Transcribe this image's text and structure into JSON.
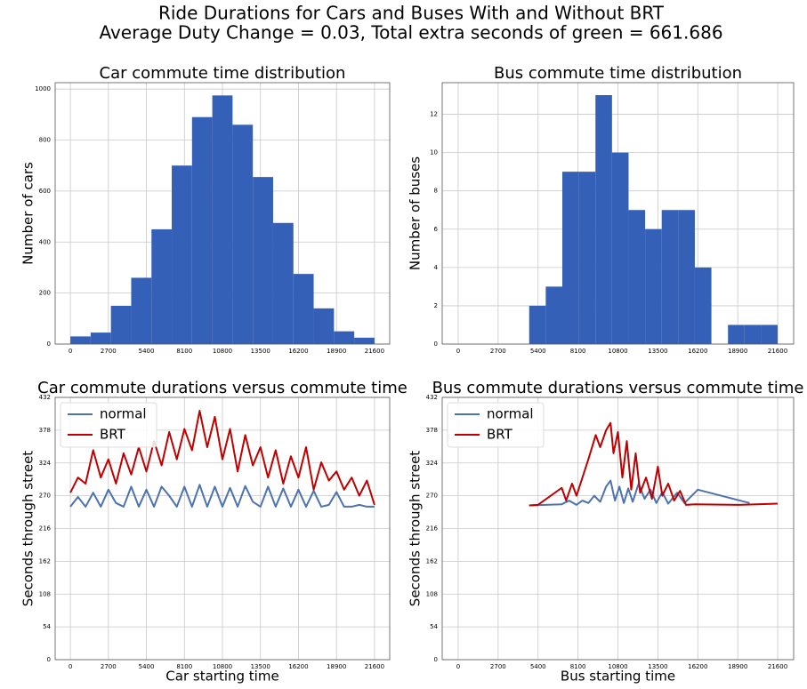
{
  "title": [
    "Ride Durations for Cars and Buses With and Without BRT",
    "Average Duty Change = 0.03, Total extra seconds of green = 661.686"
  ],
  "chart_data": [
    {
      "type": "histogram",
      "title": "Car commute time distribution",
      "y_label": "Number of cars",
      "color": "#3560b8",
      "bins": [
        0,
        1440,
        2880,
        4320,
        5760,
        7200,
        8640,
        10080,
        11520,
        12960,
        14400,
        15840,
        17280,
        18720,
        20160,
        21600
      ],
      "values": [
        30,
        45,
        150,
        260,
        450,
        700,
        890,
        975,
        860,
        655,
        475,
        275,
        140,
        50,
        25
      ],
      "xlim": [
        -1080,
        22680
      ],
      "ylim": [
        0,
        1025
      ],
      "xticks": [
        0,
        2700,
        5400,
        8100,
        10800,
        13500,
        16200,
        18900,
        21600
      ],
      "yticks": [
        0,
        200,
        400,
        600,
        800,
        1000
      ],
      "grid": true
    },
    {
      "type": "histogram",
      "title": "Bus commute time distribution",
      "y_label": "Number of buses",
      "color": "#3560b8",
      "bins": [
        4800,
        5920,
        7040,
        8160,
        9280,
        10400,
        11520,
        12640,
        13760,
        14880,
        16000,
        17120,
        18240,
        19360,
        20480,
        21600
      ],
      "values": [
        2,
        3,
        9,
        9,
        13,
        10,
        7,
        6,
        7,
        7,
        4,
        0,
        1,
        1,
        1
      ],
      "xlim": [
        -1080,
        22680
      ],
      "ylim": [
        0,
        13.65
      ],
      "xticks": [
        0,
        2700,
        5400,
        8100,
        10800,
        13500,
        16200,
        18900,
        21600
      ],
      "yticks": [
        0,
        2,
        4,
        6,
        8,
        10,
        12
      ],
      "grid": true
    },
    {
      "type": "line",
      "title": "Car commute durations versus commute time",
      "x_label": "Car starting time",
      "y_label": "Seconds through street",
      "series": [
        {
          "name": "normal",
          "color": "#4c72b0",
          "x": [
            0,
            540,
            1080,
            1620,
            2160,
            2700,
            3240,
            3780,
            4320,
            4860,
            5400,
            5940,
            6480,
            7020,
            7560,
            8100,
            8640,
            9180,
            9720,
            10260,
            10800,
            11340,
            11880,
            12420,
            12960,
            13500,
            14040,
            14580,
            15120,
            15660,
            16200,
            16740,
            17280,
            17820,
            18360,
            18900,
            19440,
            19980,
            20520,
            21060,
            21600
          ],
          "values": [
            252,
            268,
            252,
            275,
            252,
            280,
            258,
            252,
            285,
            252,
            280,
            252,
            285,
            270,
            252,
            285,
            252,
            288,
            252,
            285,
            252,
            283,
            252,
            286,
            260,
            252,
            285,
            252,
            282,
            252,
            280,
            252,
            278,
            252,
            255,
            276,
            252,
            252,
            255,
            252,
            252
          ]
        },
        {
          "name": "BRT",
          "color": "#c00000",
          "x": [
            0,
            540,
            1080,
            1620,
            2160,
            2700,
            3240,
            3780,
            4320,
            4860,
            5400,
            5940,
            6480,
            7020,
            7560,
            8100,
            8640,
            9180,
            9720,
            10260,
            10800,
            11340,
            11880,
            12420,
            12960,
            13500,
            14040,
            14580,
            15120,
            15660,
            16200,
            16740,
            17280,
            17820,
            18360,
            18900,
            19440,
            19980,
            20520,
            21060,
            21600
          ],
          "values": [
            275,
            300,
            290,
            345,
            300,
            330,
            290,
            340,
            305,
            350,
            310,
            360,
            320,
            375,
            330,
            380,
            345,
            410,
            350,
            400,
            330,
            380,
            310,
            370,
            320,
            350,
            300,
            345,
            290,
            335,
            300,
            350,
            280,
            325,
            295,
            310,
            280,
            300,
            270,
            295,
            255
          ]
        }
      ],
      "xlim": [
        -1080,
        22680
      ],
      "ylim": [
        0,
        432
      ],
      "xticks": [
        0,
        2700,
        5400,
        8100,
        10800,
        13500,
        16200,
        18900,
        21600
      ],
      "yticks": [
        0,
        54,
        108,
        162,
        216,
        270,
        324,
        378,
        432
      ],
      "grid": true,
      "legend": "upper left"
    },
    {
      "type": "line",
      "title": "Bus commute durations versus commute time",
      "x_label": "Bus starting time",
      "y_label": "Seconds through street",
      "series": [
        {
          "name": "normal",
          "color": "#4c72b0",
          "x": [
            4800,
            7000,
            7500,
            8000,
            8400,
            8800,
            9200,
            9600,
            10000,
            10300,
            10600,
            10900,
            11200,
            11500,
            11800,
            12200,
            12600,
            13000,
            13400,
            13800,
            14200,
            14800,
            15300,
            16200,
            19700
          ],
          "values": [
            254,
            256,
            262,
            255,
            262,
            258,
            270,
            260,
            285,
            295,
            262,
            285,
            258,
            282,
            260,
            290,
            265,
            280,
            258,
            276,
            257,
            275,
            258,
            280,
            258
          ]
        },
        {
          "name": "BRT",
          "color": "#c00000",
          "x": [
            4800,
            5400,
            7000,
            7300,
            7700,
            8000,
            8400,
            8800,
            9300,
            9600,
            10000,
            10300,
            10500,
            10800,
            11100,
            11400,
            11700,
            12000,
            12300,
            12700,
            13100,
            13500,
            13800,
            14200,
            14600,
            15000,
            15400,
            16000,
            19000,
            21600
          ],
          "values": [
            254,
            255,
            283,
            262,
            290,
            270,
            300,
            330,
            370,
            350,
            378,
            390,
            340,
            375,
            300,
            360,
            280,
            340,
            275,
            300,
            265,
            318,
            270,
            290,
            262,
            278,
            255,
            256,
            255,
            257
          ]
        }
      ],
      "xlim": [
        -1080,
        22680
      ],
      "ylim": [
        0,
        432
      ],
      "xticks": [
        0,
        2700,
        5400,
        8100,
        10800,
        13500,
        16200,
        18900,
        21600
      ],
      "yticks": [
        0,
        54,
        108,
        162,
        216,
        270,
        324,
        378,
        432
      ],
      "grid": true,
      "legend": "upper left"
    }
  ]
}
